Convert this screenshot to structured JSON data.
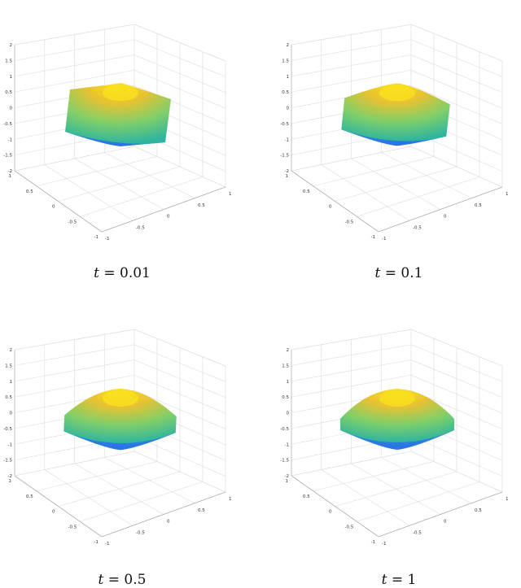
{
  "figure": {
    "panels": [
      {
        "caption_var": "t",
        "caption_value": "= 0.01",
        "t": 0.01,
        "shape": 0.0
      },
      {
        "caption_var": "t",
        "caption_value": "= 0.1",
        "t": 0.1,
        "shape": 0.35
      },
      {
        "caption_var": "t",
        "caption_value": "= 0.5",
        "t": 0.5,
        "shape": 0.85
      },
      {
        "caption_var": "t",
        "caption_value": "= 1",
        "t": 1,
        "shape": 1.0
      }
    ],
    "axes": {
      "z_ticks": [
        "2",
        "1.5",
        "1",
        "0.5",
        "0",
        "-0.5",
        "-1",
        "-1.5",
        "-2"
      ],
      "y_ticks": [
        "1",
        "0.5",
        "0",
        "-0.5",
        "-1"
      ],
      "x_ticks": [
        "-1",
        "-0.5",
        "0",
        "0.5",
        "1"
      ]
    },
    "colors": {
      "top": "#f9e21d",
      "upper": "#e8c231",
      "middle": "#7fcf6a",
      "lower": "#2db5a0",
      "bottom": "#2b6fe8",
      "grid": "#dcdcdc"
    }
  }
}
